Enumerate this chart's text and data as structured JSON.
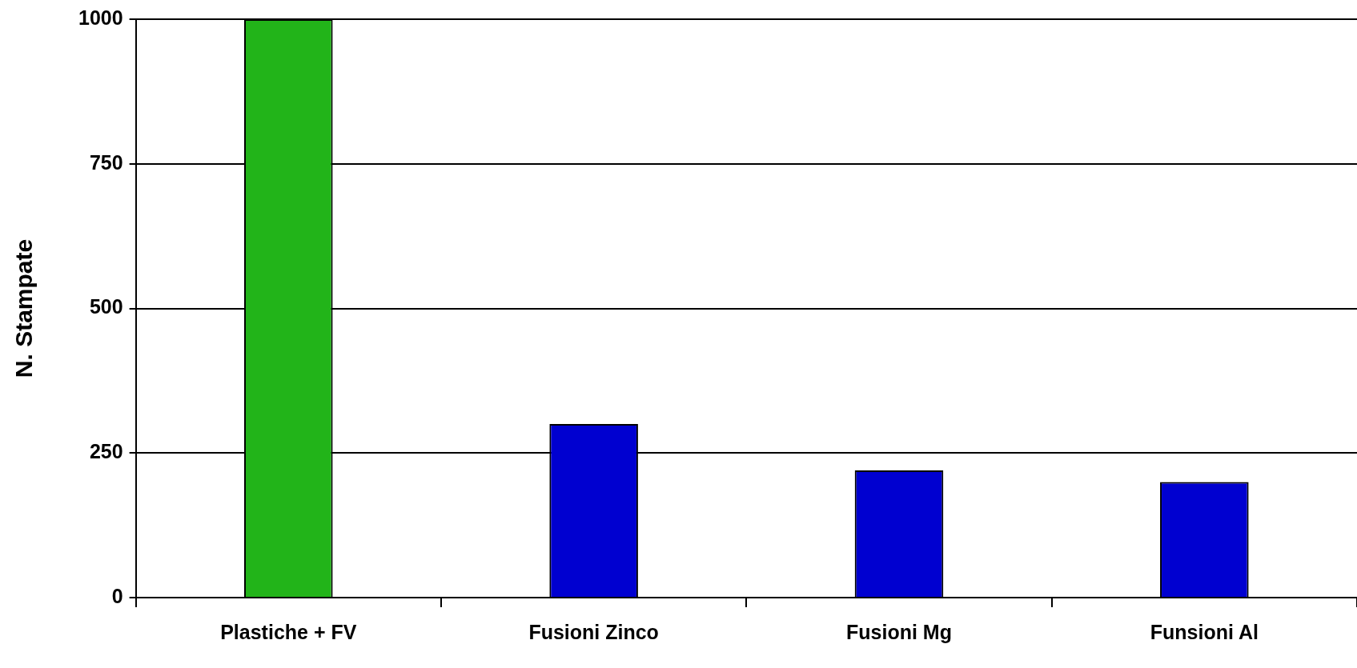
{
  "chart_data": {
    "type": "bar",
    "ylabel": "N. Stampate",
    "categories": [
      "Plastiche + FV",
      "Fusioni Zinco",
      "Fusioni Mg",
      "Funsioni Al"
    ],
    "values": [
      1000,
      300,
      220,
      200
    ],
    "colors": [
      "#22b419",
      "#0000d0",
      "#0000d0",
      "#0000d0"
    ],
    "ylim": [
      0,
      1000
    ],
    "yticks": [
      0,
      250,
      500,
      750,
      1000
    ],
    "grid": "y"
  }
}
